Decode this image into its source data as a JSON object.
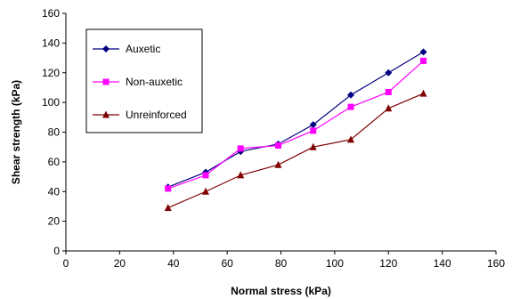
{
  "chart_data": {
    "type": "line",
    "title": "",
    "xlabel": "Normal stress (kPa)",
    "ylabel": "Shear strength (kPa)",
    "xlim": [
      0,
      160
    ],
    "ylim": [
      0,
      160
    ],
    "xticks": [
      0,
      20,
      40,
      60,
      80,
      100,
      120,
      140,
      160
    ],
    "yticks": [
      0,
      20,
      40,
      60,
      80,
      100,
      120,
      140,
      160
    ],
    "grid": false,
    "legend_position": "top-left",
    "x": [
      38,
      52,
      65,
      79,
      92,
      106,
      120,
      133
    ],
    "series": [
      {
        "name": "Auxetic",
        "color": "#000080",
        "marker": "diamond",
        "values": [
          43,
          53,
          67,
          72,
          85,
          105,
          120,
          134
        ]
      },
      {
        "name": "Non-auxetic",
        "color": "#ff00ff",
        "marker": "square",
        "values": [
          42,
          51,
          69,
          71,
          81,
          97,
          107,
          128
        ]
      },
      {
        "name": "Unreinforced",
        "color": "#800000",
        "marker": "triangle",
        "values": [
          29,
          40,
          51,
          58,
          70,
          75,
          96,
          106
        ]
      }
    ]
  }
}
